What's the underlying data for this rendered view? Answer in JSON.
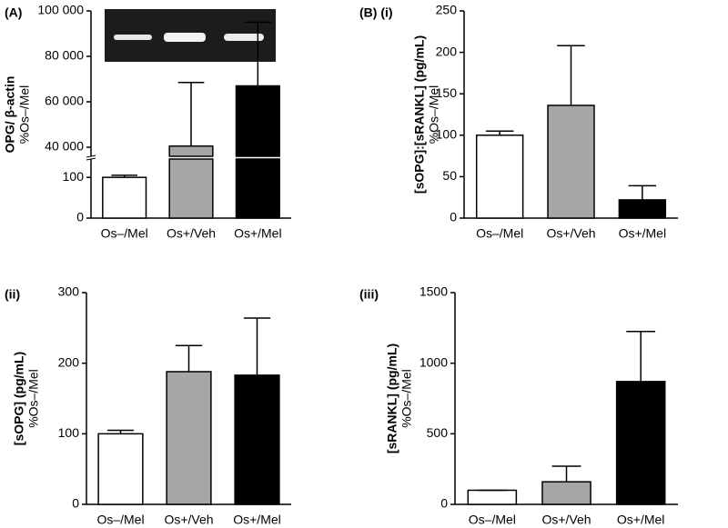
{
  "chart_data": [
    {
      "type": "bar",
      "panel_label": "(A)",
      "ylabel": [
        "OPG/ β-actin",
        "%Os–/Mel"
      ],
      "categories": [
        "Os–/Mel",
        "Os+/Veh",
        "Os+/Mel"
      ],
      "values": [
        100,
        40500,
        67000
      ],
      "errors": [
        5,
        28000,
        28000
      ],
      "colors": [
        "#ffffff",
        "#a6a6a6",
        "#000000"
      ],
      "ylim_lower": [
        0,
        145
      ],
      "yticks_lower": [
        0,
        100
      ],
      "ylim_upper": [
        36000,
        100000
      ],
      "yticks_upper": [
        {
          "value": 40000,
          "label": "40 000"
        },
        {
          "value": 60000,
          "label": "60 000"
        },
        {
          "value": 80000,
          "label": "80 000"
        },
        {
          "value": 100000,
          "label": "100 000"
        }
      ]
    },
    {
      "type": "bar",
      "panel_label": "(B) (i)",
      "ylabel": [
        "[sOPG]:[sRANKL] (pg/mL)",
        "%Os–/Mel"
      ],
      "categories": [
        "Os–/Mel",
        "Os+/Veh",
        "Os+/Mel"
      ],
      "values": [
        100,
        136,
        22
      ],
      "errors": [
        5,
        72,
        17
      ],
      "colors": [
        "#ffffff",
        "#a6a6a6",
        "#000000"
      ],
      "ylim": [
        0,
        250
      ],
      "yticks": [
        0,
        50,
        100,
        150,
        200,
        250
      ]
    },
    {
      "type": "bar",
      "panel_label": "(ii)",
      "ylabel": [
        "[sOPG] (pg/mL)",
        "%Os–/Mel"
      ],
      "categories": [
        "Os–/Mel",
        "Os+/Veh",
        "Os+/Mel"
      ],
      "values": [
        100,
        188,
        183
      ],
      "errors": [
        5,
        37,
        81
      ],
      "colors": [
        "#ffffff",
        "#a6a6a6",
        "#000000"
      ],
      "ylim": [
        0,
        300
      ],
      "yticks": [
        0,
        100,
        200,
        300
      ]
    },
    {
      "type": "bar",
      "panel_label": "(iii)",
      "ylabel": [
        "[sRANKL] (pg/mL)",
        "%Os–/Mel"
      ],
      "categories": [
        "Os–/Mel",
        "Os+/Veh",
        "Os+/Mel"
      ],
      "values": [
        100,
        160,
        870
      ],
      "errors": [
        0,
        110,
        355
      ],
      "colors": [
        "#ffffff",
        "#a6a6a6",
        "#000000"
      ],
      "ylim": [
        0,
        1500
      ],
      "yticks": [
        0,
        500,
        1000,
        1500
      ]
    }
  ]
}
